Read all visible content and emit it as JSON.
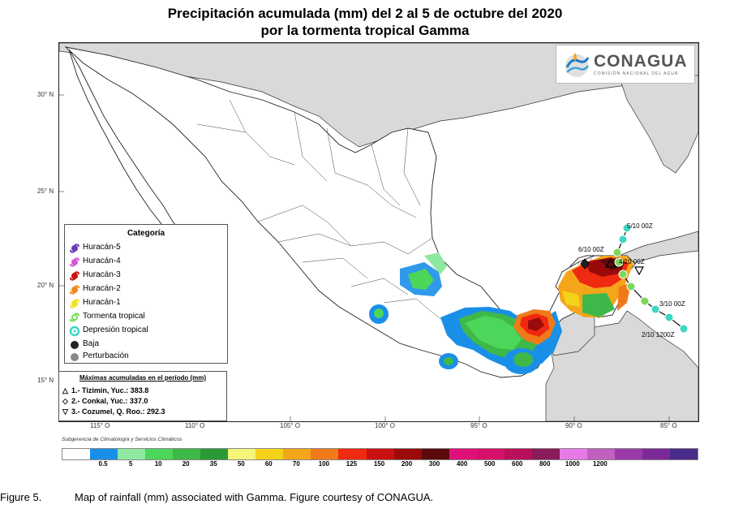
{
  "title": {
    "line1": "Precipitación acumulada (mm) del 2 al 5 de octubre del 2020",
    "line2": "por la tormenta tropical Gamma"
  },
  "logo": {
    "name": "CONAGUA",
    "subtitle": "COMISIÓN NACIONAL DEL AGUA"
  },
  "latitude_labels": [
    "30° N",
    "25° N",
    "20° N",
    "15° N"
  ],
  "longitude_labels": [
    "115° O",
    "110° O",
    "105° O",
    "100° O",
    "95° O",
    "90° O",
    "85° O"
  ],
  "legend": {
    "title": "Categoría",
    "items": [
      {
        "label": "Huracán-5",
        "color": "#6a3db8",
        "icon": "hurricane-icon"
      },
      {
        "label": "Huracán-4",
        "color": "#d35ad6",
        "icon": "hurricane-icon"
      },
      {
        "label": "Huracán-3",
        "color": "#cc1010",
        "icon": "hurricane-icon"
      },
      {
        "label": "Huracán-2",
        "color": "#f08a1c",
        "icon": "hurricane-icon"
      },
      {
        "label": "Huracán-1",
        "color": "#f5e020",
        "icon": "hurricane-icon"
      },
      {
        "label": "Tormenta tropical",
        "color": "#7ad95a",
        "icon": "storm-icon"
      },
      {
        "label": "Depresión tropical",
        "color": "#3fd6c4",
        "icon": "depression-icon"
      },
      {
        "label": "Baja",
        "color": "#222222",
        "icon": "low-icon"
      },
      {
        "label": "Perturbación",
        "color": "#888888",
        "icon": "disturbance-icon"
      }
    ]
  },
  "maxima": {
    "title": "Máximas acumuladas en el período (mm)",
    "items": [
      {
        "symbol": "△",
        "text": "1.- Tizimin, Yuc.: 383.8"
      },
      {
        "symbol": "◇",
        "text": "2.- Conkal, Yuc.: 337.0"
      },
      {
        "symbol": "▽",
        "text": "3.- Cozumel, Q. Roo.: 292.3"
      }
    ]
  },
  "track_labels": [
    "5/10 00Z",
    "6/10 00Z",
    "4/10 00Z",
    "3/10 00Z",
    "2/10 1200Z"
  ],
  "source_note": "Subgerencia de Climatología y Servicios Climáticos",
  "colorbar": {
    "colors": [
      "#ffffff",
      "#1a8fe8",
      "#8fe8a0",
      "#4cd65a",
      "#3fb84a",
      "#2a9a36",
      "#f5f57a",
      "#f5d21a",
      "#f5a51a",
      "#f07a1a",
      "#f02a10",
      "#c81010",
      "#9a0a0a",
      "#5a0a0a",
      "#e0107a",
      "#d6106a",
      "#b8105a",
      "#8a1a5a",
      "#e87ae8",
      "#c060c0",
      "#9a3aa8",
      "#7a2a98",
      "#4a2a8a"
    ],
    "labels": [
      {
        "text": "0.5",
        "pos": 1
      },
      {
        "text": "5",
        "pos": 2
      },
      {
        "text": "10",
        "pos": 3
      },
      {
        "text": "20",
        "pos": 4
      },
      {
        "text": "35",
        "pos": 5
      },
      {
        "text": "50",
        "pos": 6
      },
      {
        "text": "60",
        "pos": 7
      },
      {
        "text": "70",
        "pos": 8
      },
      {
        "text": "100",
        "pos": 9
      },
      {
        "text": "125",
        "pos": 10
      },
      {
        "text": "150",
        "pos": 11
      },
      {
        "text": "200",
        "pos": 12
      },
      {
        "text": "300",
        "pos": 13
      },
      {
        "text": "400",
        "pos": 14
      },
      {
        "text": "500",
        "pos": 15
      },
      {
        "text": "600",
        "pos": 16
      },
      {
        "text": "800",
        "pos": 17
      },
      {
        "text": "1000",
        "pos": 18
      },
      {
        "text": "1200",
        "pos": 19
      }
    ]
  },
  "caption": {
    "label": "Figure 5.",
    "text": "Map of rainfall (mm) associated with Gamma.  Figure courtesy of CONAGUA."
  }
}
